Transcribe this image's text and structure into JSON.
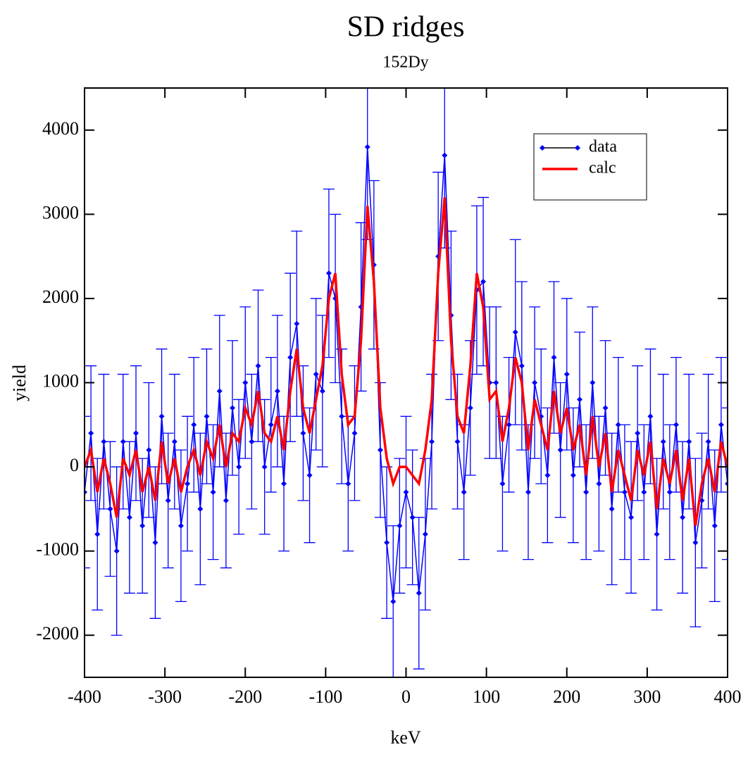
{
  "chart_data": {
    "type": "line",
    "title": "SD ridges",
    "subtitle": "152Dy",
    "x_label": "keV",
    "y_label": "yield",
    "xlim": [
      -400,
      400
    ],
    "ylim": [
      -2500,
      4500
    ],
    "xticks": [
      -400,
      -300,
      -200,
      -100,
      0,
      100,
      200,
      300,
      400
    ],
    "yticks": [
      -2000,
      -1000,
      0,
      1000,
      2000,
      3000,
      4000
    ],
    "legend": "upper right",
    "x": [
      -400,
      -392,
      -384,
      -376,
      -368,
      -360,
      -352,
      -344,
      -336,
      -328,
      -320,
      -312,
      -304,
      -296,
      -288,
      -280,
      -272,
      -264,
      -256,
      -248,
      -240,
      -232,
      -224,
      -216,
      -208,
      -200,
      -192,
      -184,
      -176,
      -168,
      -160,
      -152,
      -144,
      -136,
      -128,
      -120,
      -112,
      -104,
      -96,
      -88,
      -80,
      -72,
      -64,
      -56,
      -48,
      -40,
      -32,
      -24,
      -16,
      -8,
      0,
      8,
      16,
      24,
      32,
      40,
      48,
      56,
      64,
      72,
      80,
      88,
      96,
      104,
      112,
      120,
      128,
      136,
      144,
      152,
      160,
      168,
      176,
      184,
      192,
      200,
      208,
      216,
      224,
      232,
      240,
      248,
      256,
      264,
      272,
      280,
      288,
      296,
      304,
      312,
      320,
      328,
      336,
      344,
      352,
      360,
      368,
      376,
      384,
      392,
      400
    ],
    "series": [
      {
        "name": "data",
        "color": "#0000ff",
        "marker": "diamond",
        "values": [
          -300,
          400,
          -800,
          300,
          -500,
          -1000,
          300,
          -600,
          400,
          -700,
          200,
          -900,
          600,
          -400,
          300,
          -700,
          -200,
          500,
          -500,
          600,
          -300,
          900,
          -400,
          700,
          0,
          1000,
          300,
          1200,
          0,
          500,
          900,
          -200,
          1300,
          1700,
          400,
          -100,
          1100,
          900,
          2300,
          2000,
          600,
          -200,
          400,
          1900,
          3800,
          2400,
          200,
          -900,
          -1600,
          -700,
          -300,
          -600,
          -1500,
          -800,
          300,
          2500,
          3700,
          1800,
          300,
          -300,
          700,
          2100,
          2200,
          1000,
          1000,
          -200,
          500,
          1600,
          1200,
          -300,
          1000,
          600,
          -100,
          1300,
          200,
          1100,
          -100,
          800,
          -300,
          1000,
          -200,
          700,
          -500,
          500,
          -300,
          -600,
          400,
          -300,
          600,
          -800,
          300,
          -300,
          500,
          -600,
          300,
          -900,
          -400,
          300,
          -700,
          500,
          -200
        ],
        "errors": [
          900,
          800,
          900,
          800,
          800,
          1000,
          800,
          900,
          800,
          800,
          800,
          900,
          800,
          800,
          800,
          900,
          800,
          800,
          900,
          800,
          800,
          900,
          800,
          800,
          800,
          900,
          800,
          900,
          800,
          800,
          900,
          800,
          1000,
          1100,
          800,
          800,
          900,
          900,
          1000,
          1000,
          800,
          800,
          800,
          1000,
          1100,
          1000,
          800,
          900,
          900,
          800,
          900,
          800,
          900,
          900,
          800,
          1000,
          1100,
          1000,
          800,
          800,
          800,
          1000,
          1000,
          900,
          900,
          800,
          800,
          1100,
          1000,
          800,
          900,
          800,
          800,
          900,
          800,
          900,
          800,
          800,
          800,
          900,
          800,
          800,
          900,
          800,
          800,
          900,
          800,
          800,
          800,
          900,
          800,
          800,
          800,
          900,
          800,
          1000,
          800,
          800,
          900,
          800,
          900
        ]
      },
      {
        "name": "calc",
        "color": "#ff0000",
        "values": [
          0,
          200,
          -300,
          100,
          -200,
          -600,
          100,
          -100,
          200,
          -300,
          0,
          -400,
          300,
          -200,
          100,
          -300,
          0,
          200,
          -100,
          300,
          100,
          500,
          0,
          400,
          300,
          700,
          500,
          900,
          400,
          300,
          600,
          200,
          900,
          1400,
          700,
          400,
          800,
          1200,
          2000,
          2300,
          1100,
          500,
          600,
          1500,
          3100,
          2200,
          700,
          100,
          -200,
          0,
          0,
          -100,
          -200,
          200,
          800,
          2300,
          3200,
          1500,
          600,
          400,
          1200,
          2300,
          1900,
          800,
          900,
          300,
          700,
          1300,
          1000,
          200,
          800,
          500,
          200,
          900,
          400,
          700,
          200,
          500,
          -100,
          600,
          0,
          400,
          -300,
          200,
          -100,
          -400,
          200,
          -100,
          300,
          -500,
          100,
          -200,
          200,
          -400,
          100,
          -700,
          -200,
          100,
          -300,
          300,
          0
        ]
      }
    ]
  }
}
